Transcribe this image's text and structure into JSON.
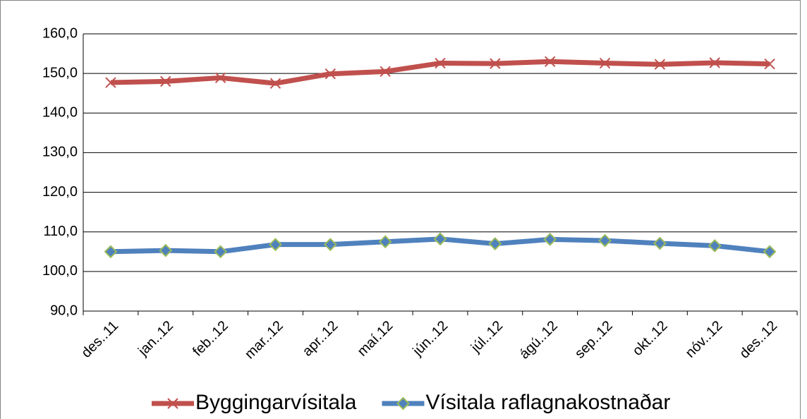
{
  "chart_data": {
    "type": "line",
    "categories": [
      "des..11",
      "jan..12",
      "feb..12",
      "mar..12",
      "apr..12",
      "maí.12",
      "jún..12",
      "júl..12",
      "ágú..12",
      "sep..12",
      "okt..12",
      "nóv..12",
      "des..12"
    ],
    "series": [
      {
        "name": "Byggingarvísitala",
        "color": "#c0504d",
        "values": [
          147.7,
          148.0,
          148.9,
          147.5,
          149.9,
          150.5,
          152.6,
          152.5,
          153.0,
          152.6,
          152.3,
          152.7,
          152.4
        ]
      },
      {
        "name": "Vísitala raflagnakostnaðar",
        "color": "#4f81bd",
        "values": [
          105.0,
          105.3,
          105.0,
          106.8,
          106.8,
          107.5,
          108.2,
          107.0,
          108.1,
          107.8,
          107.1,
          106.5,
          105.0
        ]
      }
    ],
    "ylim": [
      90,
      160
    ],
    "yticks": [
      {
        "value": 90,
        "label": "90,0"
      },
      {
        "value": 100,
        "label": "100,0"
      },
      {
        "value": 110,
        "label": "110,0"
      },
      {
        "value": 120,
        "label": "120,0"
      },
      {
        "value": 130,
        "label": "130,0"
      },
      {
        "value": 140,
        "label": "140,0"
      },
      {
        "value": 150,
        "label": "150,0"
      },
      {
        "value": 160,
        "label": "160,0"
      }
    ],
    "grid": true,
    "legend": "bottom"
  }
}
